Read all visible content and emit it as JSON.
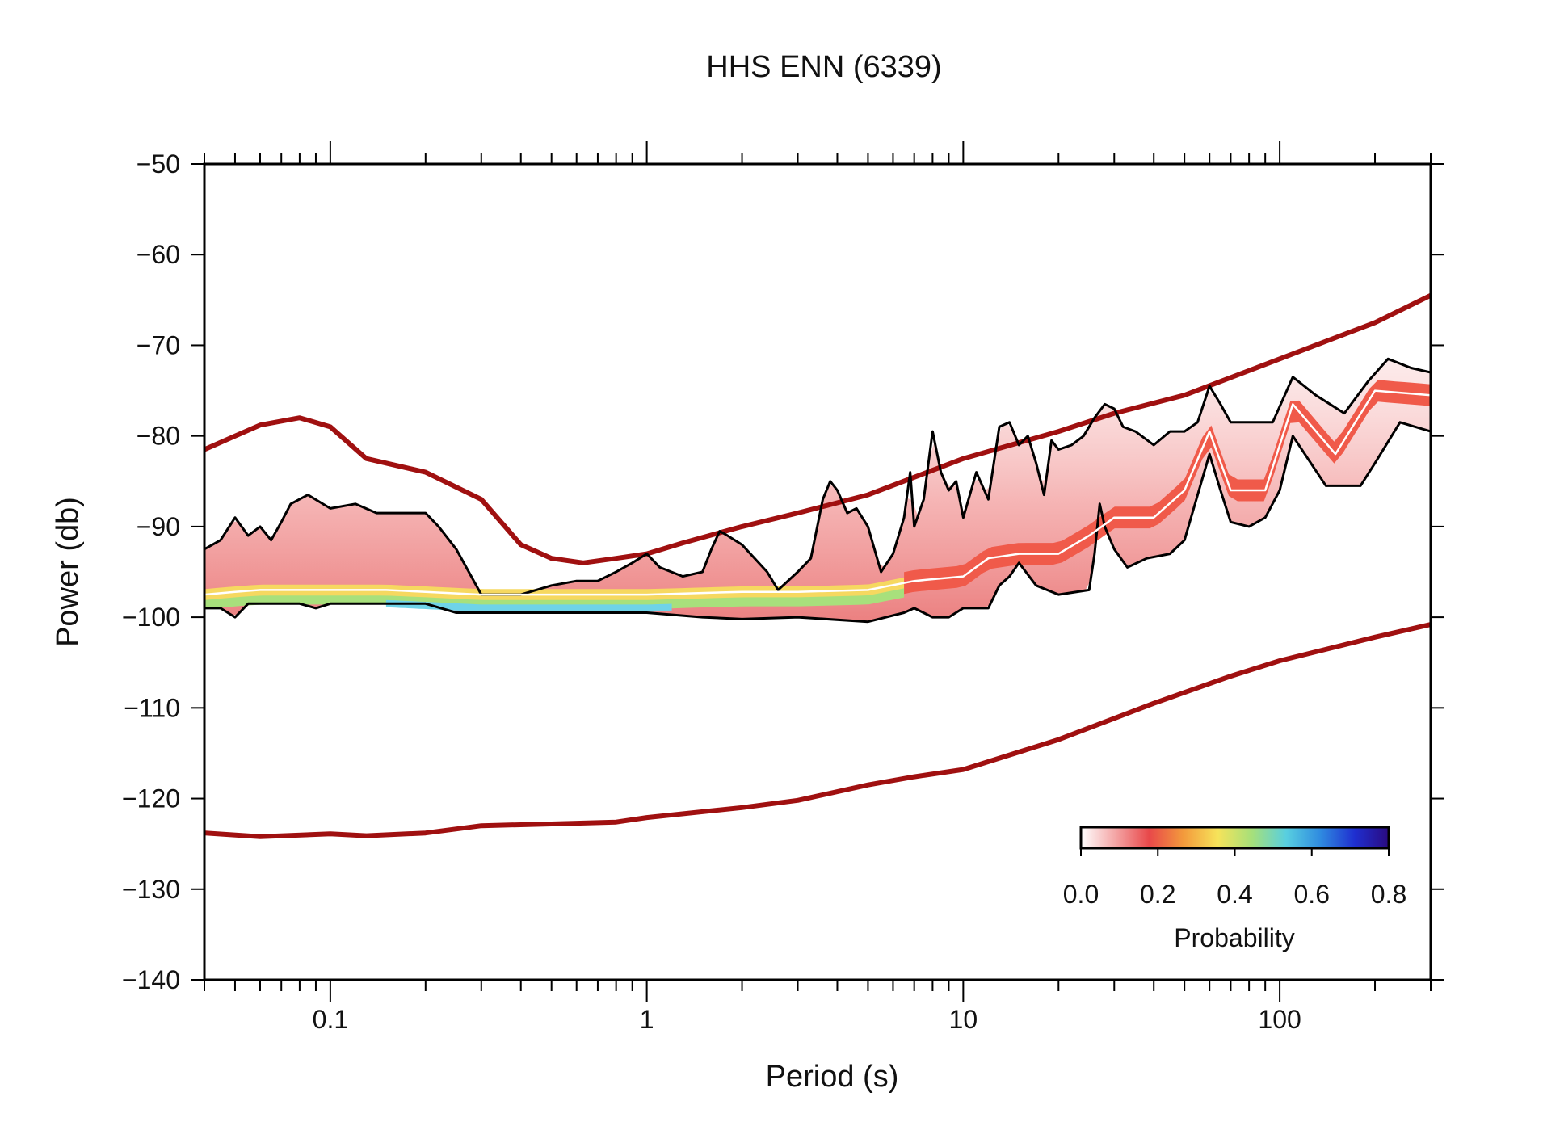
{
  "chart_data": {
    "type": "line",
    "title": "HHS ENN (6339)",
    "xlabel": "Period (s)",
    "ylabel": "Power (db)",
    "xscale": "log",
    "xlim": [
      0.04,
      300
    ],
    "ylim": [
      -140,
      -50
    ],
    "x_ticks": [
      0.1,
      1,
      10,
      100
    ],
    "x_tick_labels": [
      "0.1",
      "1",
      "10",
      "100"
    ],
    "y_ticks": [
      -50,
      -60,
      -70,
      -80,
      -90,
      -100,
      -110,
      -120,
      -130,
      -140
    ],
    "y_tick_labels": [
      "−50",
      "−60",
      "−70",
      "−80",
      "−90",
      "−100",
      "−110",
      "−120",
      "−130",
      "−140"
    ],
    "grid": false,
    "colorbar": {
      "label": "Probability",
      "range": [
        0,
        0.8
      ],
      "ticks": [
        "0.0",
        "0.2",
        "0.4",
        "0.6",
        "0.8"
      ],
      "colors": [
        "#ffffff",
        "#f4a6a6",
        "#e8484a",
        "#f39a3c",
        "#f6e35a",
        "#a6e07a",
        "#58cfe0",
        "#2f8be0",
        "#1f2fd0",
        "#2a0a80"
      ],
      "placement": "bottom-right"
    },
    "series": [
      {
        "role": "high-noise-model",
        "color": "#a01010",
        "points": [
          [
            0.04,
            -81.5
          ],
          [
            0.05,
            -80
          ],
          [
            0.06,
            -78.8
          ],
          [
            0.08,
            -78
          ],
          [
            0.1,
            -79
          ],
          [
            0.13,
            -82.5
          ],
          [
            0.2,
            -84
          ],
          [
            0.3,
            -87
          ],
          [
            0.4,
            -92
          ],
          [
            0.5,
            -93.5
          ],
          [
            0.63,
            -94
          ],
          [
            0.8,
            -93.5
          ],
          [
            1.0,
            -93
          ],
          [
            1.3,
            -91.8
          ],
          [
            2.0,
            -90
          ],
          [
            3.0,
            -88.5
          ],
          [
            5.0,
            -86.5
          ],
          [
            10,
            -82.5
          ],
          [
            20,
            -79.5
          ],
          [
            30,
            -77.5
          ],
          [
            50,
            -75.5
          ],
          [
            100,
            -71.5
          ],
          [
            200,
            -67.5
          ],
          [
            300,
            -64.5
          ]
        ]
      },
      {
        "role": "low-noise-model",
        "color": "#a01010",
        "points": [
          [
            0.04,
            -123.8
          ],
          [
            0.06,
            -124.2
          ],
          [
            0.1,
            -123.9
          ],
          [
            0.13,
            -124.1
          ],
          [
            0.2,
            -123.8
          ],
          [
            0.3,
            -123
          ],
          [
            0.5,
            -122.8
          ],
          [
            0.8,
            -122.6
          ],
          [
            1,
            -122.1
          ],
          [
            2,
            -121
          ],
          [
            3,
            -120.2
          ],
          [
            5,
            -118.5
          ],
          [
            7,
            -117.6
          ],
          [
            10,
            -116.8
          ],
          [
            20,
            -113.5
          ],
          [
            40,
            -109.5
          ],
          [
            70,
            -106.5
          ],
          [
            100,
            -104.8
          ],
          [
            200,
            -102.2
          ],
          [
            300,
            -100.8
          ]
        ]
      },
      {
        "role": "upper-percentile",
        "color": "#000000",
        "points": [
          [
            0.04,
            -92.5
          ],
          [
            0.045,
            -91.5
          ],
          [
            0.05,
            -89
          ],
          [
            0.055,
            -91
          ],
          [
            0.06,
            -90
          ],
          [
            0.065,
            -91.5
          ],
          [
            0.07,
            -89.5
          ],
          [
            0.075,
            -87.5
          ],
          [
            0.085,
            -86.5
          ],
          [
            0.1,
            -88
          ],
          [
            0.12,
            -87.5
          ],
          [
            0.14,
            -88.5
          ],
          [
            0.16,
            -88.5
          ],
          [
            0.2,
            -88.5
          ],
          [
            0.22,
            -90
          ],
          [
            0.25,
            -92.5
          ],
          [
            0.3,
            -97.5
          ],
          [
            0.4,
            -97.5
          ],
          [
            0.5,
            -96.5
          ],
          [
            0.6,
            -96
          ],
          [
            0.7,
            -96
          ],
          [
            0.8,
            -95
          ],
          [
            0.9,
            -94
          ],
          [
            1.0,
            -93
          ],
          [
            1.1,
            -94.5
          ],
          [
            1.3,
            -95.5
          ],
          [
            1.5,
            -95
          ],
          [
            1.6,
            -92.5
          ],
          [
            1.7,
            -90.5
          ],
          [
            1.8,
            -91
          ],
          [
            2.0,
            -92
          ],
          [
            2.4,
            -95
          ],
          [
            2.6,
            -97
          ],
          [
            3.0,
            -95
          ],
          [
            3.3,
            -93.5
          ],
          [
            3.6,
            -87
          ],
          [
            3.8,
            -85
          ],
          [
            4.0,
            -86
          ],
          [
            4.3,
            -88.5
          ],
          [
            4.6,
            -88
          ],
          [
            5.0,
            -90
          ],
          [
            5.5,
            -95
          ],
          [
            6.0,
            -93
          ],
          [
            6.5,
            -89
          ],
          [
            6.8,
            -84
          ],
          [
            7.0,
            -90
          ],
          [
            7.5,
            -87
          ],
          [
            8.0,
            -79.5
          ],
          [
            8.5,
            -84
          ],
          [
            9.0,
            -86
          ],
          [
            9.5,
            -85
          ],
          [
            10,
            -89
          ],
          [
            11,
            -84
          ],
          [
            12,
            -87
          ],
          [
            13,
            -79
          ],
          [
            14,
            -78.5
          ],
          [
            15,
            -81
          ],
          [
            16,
            -80
          ],
          [
            17,
            -83
          ],
          [
            18,
            -86.5
          ],
          [
            19,
            -80.5
          ],
          [
            20,
            -81.5
          ],
          [
            22,
            -81
          ],
          [
            24,
            -80
          ],
          [
            26,
            -78
          ],
          [
            28,
            -76.5
          ],
          [
            30,
            -77
          ],
          [
            32,
            -79
          ],
          [
            35,
            -79.5
          ],
          [
            40,
            -81
          ],
          [
            45,
            -79.5
          ],
          [
            50,
            -79.5
          ],
          [
            55,
            -78.5
          ],
          [
            60,
            -74.5
          ],
          [
            65,
            -76.5
          ],
          [
            70,
            -78.5
          ],
          [
            80,
            -78.5
          ],
          [
            95,
            -78.5
          ],
          [
            110,
            -73.5
          ],
          [
            130,
            -75.5
          ],
          [
            160,
            -77.5
          ],
          [
            190,
            -74
          ],
          [
            220,
            -71.5
          ],
          [
            260,
            -72.5
          ],
          [
            300,
            -73
          ]
        ]
      },
      {
        "role": "lower-percentile",
        "color": "#000000",
        "points": [
          [
            0.04,
            -99
          ],
          [
            0.045,
            -99
          ],
          [
            0.05,
            -100
          ],
          [
            0.055,
            -98.5
          ],
          [
            0.08,
            -98.5
          ],
          [
            0.09,
            -99
          ],
          [
            0.1,
            -98.5
          ],
          [
            0.2,
            -98.5
          ],
          [
            0.25,
            -99.5
          ],
          [
            0.3,
            -99.5
          ],
          [
            0.4,
            -99.5
          ],
          [
            0.5,
            -99.5
          ],
          [
            0.6,
            -99.5
          ],
          [
            0.8,
            -99.5
          ],
          [
            1.0,
            -99.5
          ],
          [
            1.5,
            -100
          ],
          [
            2.0,
            -100.2
          ],
          [
            3.0,
            -100
          ],
          [
            5.0,
            -100.5
          ],
          [
            6.5,
            -99.5
          ],
          [
            7.0,
            -99
          ],
          [
            8.0,
            -100
          ],
          [
            9.0,
            -100
          ],
          [
            10,
            -99
          ],
          [
            12,
            -99
          ],
          [
            13,
            -96.5
          ],
          [
            14,
            -95.5
          ],
          [
            15,
            -94
          ],
          [
            17,
            -96.5
          ],
          [
            20,
            -97.5
          ],
          [
            25,
            -97
          ],
          [
            26,
            -93
          ],
          [
            27,
            -87.5
          ],
          [
            28,
            -90
          ],
          [
            30,
            -92.5
          ],
          [
            33,
            -94.5
          ],
          [
            38,
            -93.5
          ],
          [
            45,
            -93
          ],
          [
            50,
            -91.5
          ],
          [
            60,
            -82
          ],
          [
            65,
            -86
          ],
          [
            70,
            -89.5
          ],
          [
            80,
            -90
          ],
          [
            90,
            -89
          ],
          [
            100,
            -86
          ],
          [
            110,
            -80
          ],
          [
            140,
            -85.5
          ],
          [
            180,
            -85.5
          ],
          [
            200,
            -83
          ],
          [
            240,
            -78.5
          ],
          [
            300,
            -79.5
          ]
        ]
      },
      {
        "role": "mode",
        "color": "#ffffff",
        "points": [
          [
            0.04,
            -97.5
          ],
          [
            0.05,
            -97.2
          ],
          [
            0.06,
            -97
          ],
          [
            0.1,
            -97
          ],
          [
            0.15,
            -97
          ],
          [
            0.2,
            -97.2
          ],
          [
            0.3,
            -97.5
          ],
          [
            0.5,
            -97.5
          ],
          [
            0.8,
            -97.5
          ],
          [
            1.0,
            -97.5
          ],
          [
            2.0,
            -97.2
          ],
          [
            3.0,
            -97.2
          ],
          [
            5.0,
            -97
          ],
          [
            7.0,
            -96
          ],
          [
            10,
            -95.5
          ],
          [
            12,
            -93.5
          ],
          [
            15,
            -93
          ],
          [
            20,
            -93
          ],
          [
            25,
            -91
          ],
          [
            30,
            -89
          ],
          [
            40,
            -89
          ],
          [
            50,
            -86
          ],
          [
            60,
            -79.5
          ],
          [
            70,
            -86
          ],
          [
            90,
            -86
          ],
          [
            110,
            -76.5
          ],
          [
            150,
            -82
          ],
          [
            200,
            -75
          ],
          [
            300,
            -75.5
          ]
        ]
      }
    ]
  }
}
